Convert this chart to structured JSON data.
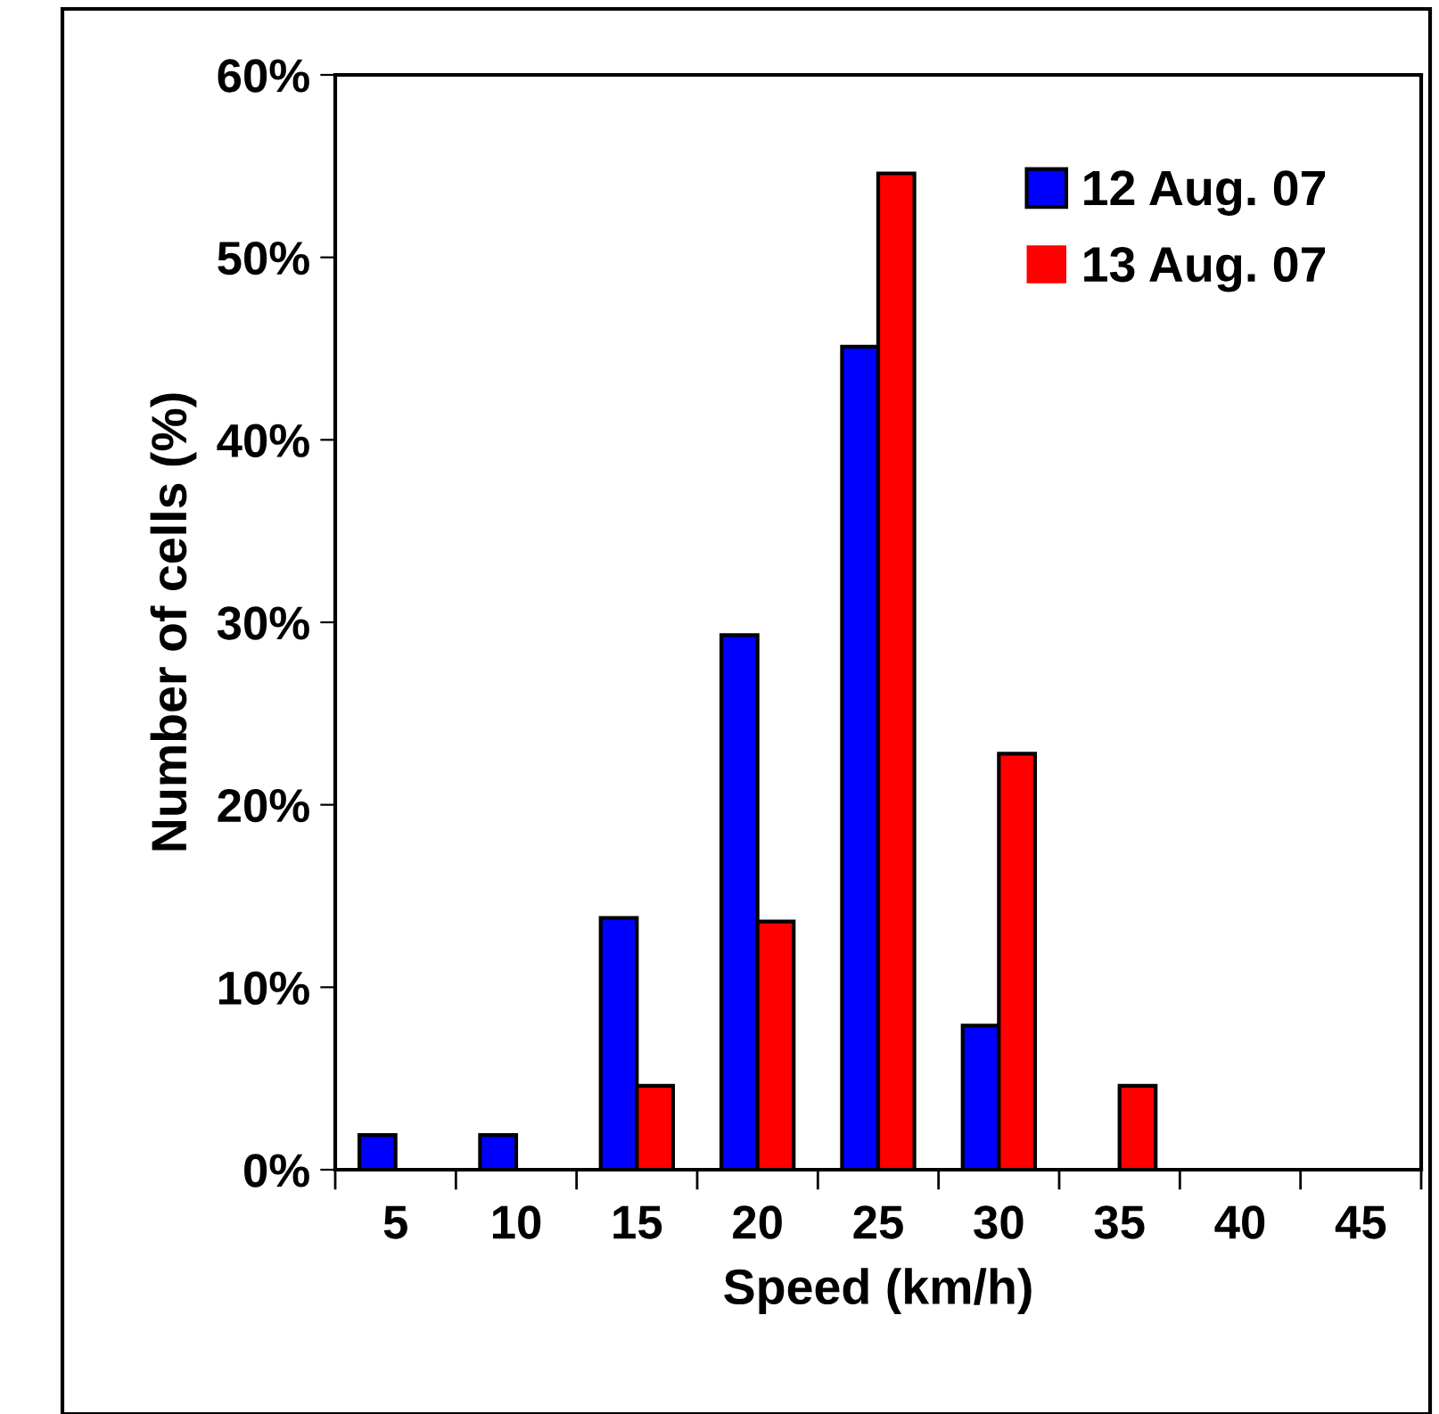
{
  "chart_data": {
    "type": "bar",
    "xlabel": "Speed (km/h)",
    "ylabel": "Number of cells (%)",
    "categories": [
      "5",
      "10",
      "15",
      "20",
      "25",
      "30",
      "35",
      "40",
      "45"
    ],
    "series": [
      {
        "name": "12 Aug. 07",
        "color": "#0000ff",
        "values": [
          1.9,
          1.9,
          13.8,
          29.3,
          45.1,
          7.9,
          0,
          0,
          0
        ]
      },
      {
        "name": "13 Aug. 07",
        "color": "#ff0000",
        "values": [
          0,
          0,
          4.6,
          13.6,
          54.6,
          22.8,
          4.6,
          0,
          0
        ]
      }
    ],
    "ylim": [
      0,
      60
    ],
    "yticks": [
      {
        "value": 0,
        "label": "0%"
      },
      {
        "value": 10,
        "label": "10%"
      },
      {
        "value": 20,
        "label": "20%"
      },
      {
        "value": 30,
        "label": "30%"
      },
      {
        "value": 40,
        "label": "40%"
      },
      {
        "value": 50,
        "label": "50%"
      },
      {
        "value": 60,
        "label": "60%"
      }
    ],
    "grid": false,
    "legend": "top right"
  }
}
